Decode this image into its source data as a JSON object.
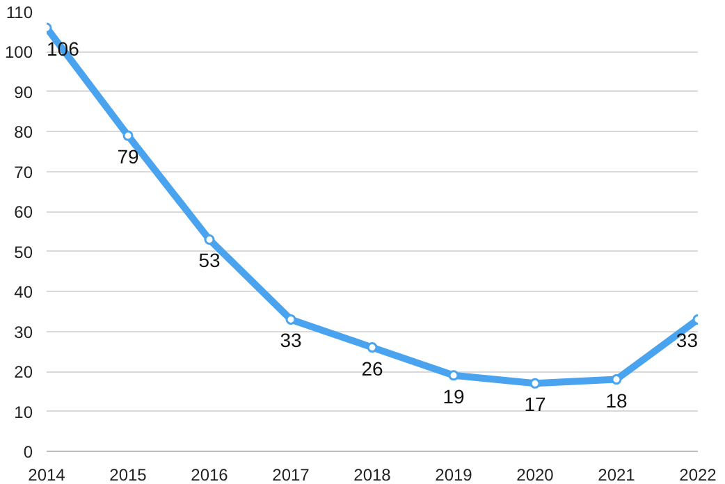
{
  "chart_data": {
    "type": "line",
    "x": [
      2014,
      2015,
      2016,
      2017,
      2018,
      2019,
      2020,
      2021,
      2022
    ],
    "series": [
      {
        "color": "#4aa3ef",
        "values": [
          106,
          79,
          53,
          33,
          26,
          19,
          17,
          18,
          33
        ]
      }
    ],
    "xlim": [
      2014,
      2022
    ],
    "xticks": [
      2014,
      2015,
      2016,
      2017,
      2018,
      2019,
      2020,
      2021,
      2022
    ],
    "ylim": [
      0,
      110
    ],
    "yticks": [
      0,
      10,
      20,
      30,
      40,
      50,
      60,
      70,
      80,
      90,
      100,
      110
    ],
    "grid": "y",
    "marker": "circle",
    "line_style": "solid",
    "data_labels": true
  }
}
